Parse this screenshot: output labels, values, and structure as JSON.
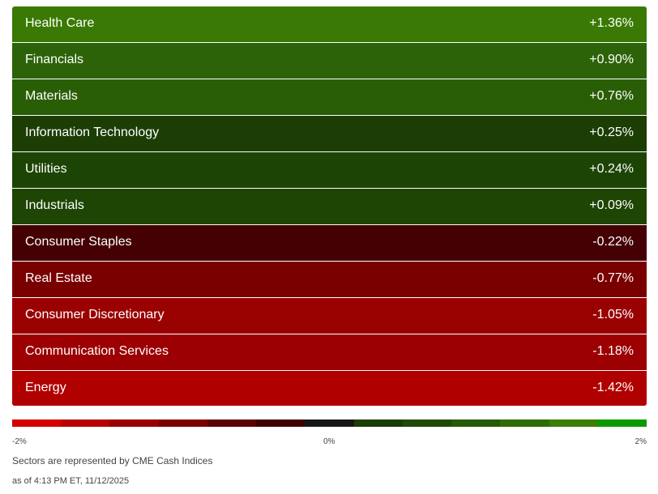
{
  "chart_data": {
    "type": "heatmap",
    "title": "",
    "categories": [
      "Health Care",
      "Financials",
      "Materials",
      "Information Technology",
      "Utilities",
      "Industrials",
      "Consumer Staples",
      "Real Estate",
      "Consumer Discretionary",
      "Communication Services",
      "Energy"
    ],
    "values": [
      1.36,
      0.9,
      0.76,
      0.25,
      0.24,
      0.09,
      -0.22,
      -0.77,
      -1.05,
      -1.18,
      -1.42
    ],
    "value_labels": [
      "+1.36%",
      "+0.90%",
      "+0.76%",
      "+0.25%",
      "+0.24%",
      "+0.09%",
      "-0.22%",
      "-0.77%",
      "-1.05%",
      "-1.18%",
      "-1.42%"
    ],
    "colors": [
      "#3a7a04",
      "#2d6308",
      "#2a5e06",
      "#1c3e05",
      "#1c4404",
      "#1e4504",
      "#440002",
      "#7a0000",
      "#9a0101",
      "#9c0002",
      "#b10000"
    ],
    "color_scale": {
      "min_label": "-2%",
      "mid_label": "0%",
      "max_label": "2%",
      "range": [
        -2,
        2
      ],
      "colors": [
        "#d40000",
        "#b70000",
        "#990000",
        "#7c0000",
        "#5c0000",
        "#400000",
        "#161616",
        "#183d05",
        "#1e4a05",
        "#265a05",
        "#2f6c05",
        "#3a7e04",
        "#0a9a00"
      ]
    }
  },
  "footer": {
    "note": "Sectors are represented by CME Cash Indices",
    "timestamp": "as of 4:13 PM ET, 11/12/2025"
  }
}
